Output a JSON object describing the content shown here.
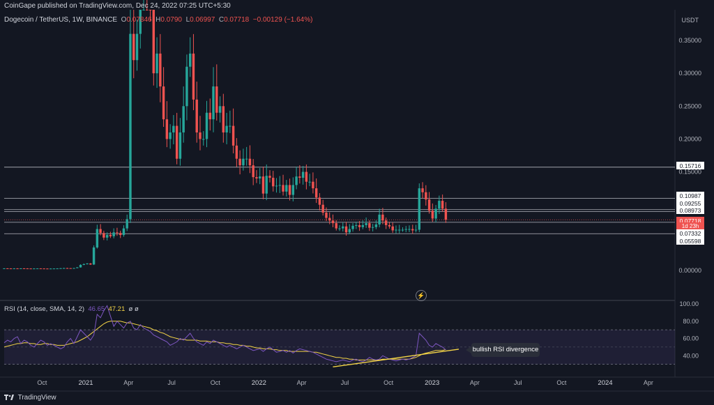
{
  "header": {
    "publisher": "CoinGape published on TradingView.com, Dec 24, 2022 07:25 UTC+5:30"
  },
  "legend": {
    "symbol": "Dogecoin / TetherUS, 1W, BINANCE",
    "o_label": "O",
    "o_value": "0.07846",
    "h_label": "H",
    "h_value": "0.0790",
    "l_label": "L",
    "l_value": "0.06997",
    "c_label": "C",
    "c_value": "0.07718",
    "change": "−0.00129 (−1.64%)"
  },
  "rsi_legend": {
    "label": "RSI (14, close, SMA, 14, 2)",
    "rsi": "46.65",
    "sma": "47.21",
    "extra": "ø ø"
  },
  "footer": {
    "brand": "TradingView"
  },
  "callout": {
    "text": "bullish RSI divergence"
  },
  "colors": {
    "up": "#26a69a",
    "down": "#ef5350",
    "rsi": "#7e57c2",
    "sma": "#f5d547",
    "trend": "#f5d547",
    "level": "#d1d4dc"
  },
  "chart_data": [
    {
      "type": "candlestick",
      "currency": "USDT",
      "y_ticks": [
        "0.35000",
        "0.30000",
        "0.25000",
        "0.20000",
        "0.15000",
        "0.00000"
      ],
      "y_range": [
        -0.03,
        0.4
      ],
      "levels": [
        "0.15716",
        "0.10987",
        "0.09255",
        "0.08973",
        "0.07718",
        "0.07332",
        "0.05598"
      ],
      "current_price": "0.07718",
      "countdown": "1d 23h",
      "x_ticks": [
        "Oct",
        "2021",
        "Apr",
        "Jul",
        "Oct",
        "2022",
        "Apr",
        "Jul",
        "Oct",
        "2023",
        "Apr",
        "Jul",
        "Oct",
        "2024",
        "Apr"
      ],
      "x_domain": [
        "2020-07-13",
        "2024-05-27"
      ],
      "weekly_close": [
        0.0032,
        0.0031,
        0.003,
        0.0031,
        0.003,
        0.0032,
        0.0031,
        0.003,
        0.0029,
        0.003,
        0.0031,
        0.003,
        0.0029,
        0.0028,
        0.0029,
        0.003,
        0.0031,
        0.0034,
        0.0036,
        0.0035,
        0.0034,
        0.0036,
        0.0047,
        0.0085,
        0.0096,
        0.0106,
        0.0091,
        0.035,
        0.063,
        0.057,
        0.05,
        0.054,
        0.052,
        0.058,
        0.057,
        0.054,
        0.064,
        0.078,
        0.36,
        0.32,
        0.36,
        0.48,
        0.56,
        0.5,
        0.4,
        0.3,
        0.33,
        0.28,
        0.23,
        0.2,
        0.21,
        0.22,
        0.17,
        0.21,
        0.25,
        0.31,
        0.33,
        0.26,
        0.21,
        0.2,
        0.2,
        0.24,
        0.23,
        0.28,
        0.24,
        0.25,
        0.21,
        0.22,
        0.22,
        0.19,
        0.17,
        0.16,
        0.17,
        0.17,
        0.16,
        0.142,
        0.14,
        0.143,
        0.117,
        0.144,
        0.141,
        0.128,
        0.129,
        0.13,
        0.12,
        0.13,
        0.115,
        0.13,
        0.143,
        0.141,
        0.15,
        0.135,
        0.135,
        0.125,
        0.111,
        0.1,
        0.088,
        0.08,
        0.076,
        0.072,
        0.064,
        0.064,
        0.067,
        0.058,
        0.063,
        0.068,
        0.069,
        0.066,
        0.069,
        0.072,
        0.065,
        0.066,
        0.07,
        0.085,
        0.076,
        0.069,
        0.067,
        0.061,
        0.062,
        0.062,
        0.062,
        0.063,
        0.063,
        0.061,
        0.062,
        0.125,
        0.119,
        0.108,
        0.091,
        0.079,
        0.094,
        0.106,
        0.094,
        0.07718
      ]
    },
    {
      "type": "line",
      "title": "RSI (14, close, SMA, 14, 2)",
      "y_ticks": [
        "100.00",
        "80.00",
        "60.00",
        "40.00"
      ],
      "y_range": [
        20,
        100
      ],
      "band": [
        30,
        70
      ],
      "series": [
        {
          "name": "RSI",
          "values": [
            55,
            58,
            56,
            60,
            62,
            54,
            58,
            56,
            52,
            50,
            54,
            58,
            56,
            52,
            54,
            52,
            50,
            48,
            50,
            56,
            60,
            54,
            62,
            70,
            66,
            62,
            58,
            64,
            88,
            84,
            92,
            98,
            86,
            74,
            80,
            76,
            72,
            78,
            80,
            72,
            70,
            76,
            72,
            70,
            68,
            64,
            62,
            60,
            58,
            56,
            52,
            54,
            56,
            60,
            58,
            62,
            66,
            60,
            56,
            54,
            52,
            56,
            54,
            58,
            56,
            54,
            52,
            50,
            52,
            50,
            48,
            50,
            52,
            50,
            48,
            46,
            47,
            48,
            45,
            48,
            50,
            47,
            44,
            45,
            46,
            44,
            46,
            43,
            46,
            48,
            47,
            46,
            45,
            44,
            42,
            40,
            38,
            36,
            35,
            34,
            33,
            34,
            35,
            34,
            33,
            35,
            36,
            34,
            33,
            35,
            38,
            36,
            35,
            36,
            40,
            38,
            36,
            35,
            34,
            35,
            36,
            35,
            36,
            38,
            40,
            66,
            62,
            58,
            52,
            50,
            54,
            52,
            50,
            46.65
          ]
        },
        {
          "name": "SMA",
          "values": [
            50,
            51,
            52,
            53,
            54,
            54,
            55,
            55,
            54,
            54,
            53,
            53,
            54,
            54,
            53,
            53,
            52,
            52,
            52,
            53,
            54,
            55,
            56,
            58,
            60,
            62,
            65,
            68,
            71,
            74,
            77,
            79,
            80,
            80,
            80,
            80,
            79,
            78,
            78,
            77,
            76,
            75,
            74,
            73,
            72,
            70,
            69,
            67,
            66,
            64,
            62,
            61,
            60,
            59,
            59,
            58,
            58,
            58,
            58,
            57,
            57,
            57,
            56,
            56,
            56,
            55,
            55,
            54,
            54,
            53,
            53,
            52,
            52,
            51,
            51,
            50,
            49,
            49,
            48,
            48,
            48,
            47,
            47,
            46,
            46,
            46,
            45,
            45,
            45,
            45,
            45,
            45,
            45,
            44,
            44,
            43,
            42,
            41,
            40,
            39,
            38,
            38,
            37,
            37,
            36,
            36,
            35,
            35,
            35,
            35,
            35,
            35,
            35,
            35,
            36,
            36,
            36,
            36,
            36,
            36,
            36,
            36,
            36,
            37,
            38,
            40,
            42,
            43,
            44,
            45,
            46,
            46,
            46,
            47.21
          ]
        }
      ],
      "trendline_note": "bullish RSI divergence"
    }
  ]
}
